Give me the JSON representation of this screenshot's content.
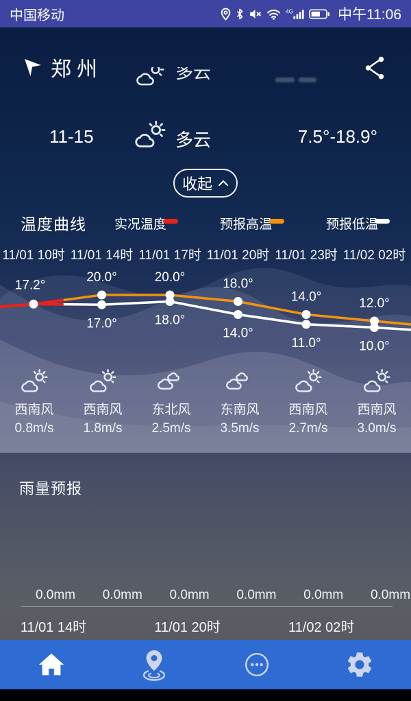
{
  "status_bar": {
    "carrier": "中国移动",
    "time": "中午11:06",
    "icons": [
      "location-icon",
      "bluetooth-icon",
      "mute-icon",
      "wifi-icon",
      "signal-4g-icon",
      "battery-icon"
    ]
  },
  "header": {
    "city": "郑州"
  },
  "peek_row": {
    "condition": "多云",
    "icon": "partly-cloudy"
  },
  "forecast_row": {
    "date": "11-15",
    "icon": "partly-cloudy",
    "condition": "多云",
    "temp_range": "7.5°-18.9°"
  },
  "collapse": {
    "label": "收起"
  },
  "temp_section": {
    "title": "温度曲线",
    "legend": [
      {
        "label": "实况温度",
        "color": "#e8221a"
      },
      {
        "label": "预报高温",
        "color": "#f2930d"
      },
      {
        "label": "预报低温",
        "color": "#ffffff"
      }
    ],
    "times": [
      "11/01 10时",
      "11/01 14时",
      "11/01 17时",
      "11/01 20时",
      "11/01 23时",
      "11/02 02时"
    ],
    "chart_data": {
      "type": "line",
      "x": [
        "11/01 10时",
        "11/01 14时",
        "11/01 17时",
        "11/01 20时",
        "11/01 23时",
        "11/02 02时"
      ],
      "unit": "°",
      "series": [
        {
          "name": "实况温度",
          "color": "#e8221a",
          "points": [
            {
              "x": "11/01 10时",
              "value": 17.2
            }
          ]
        },
        {
          "name": "预报高温",
          "color": "#f2930d",
          "points": [
            {
              "x": "11/01 14时",
              "value": 20.0
            },
            {
              "x": "11/01 17时",
              "value": 20.0
            },
            {
              "x": "11/01 20时",
              "value": 18.0
            },
            {
              "x": "11/01 23时",
              "value": 14.0
            },
            {
              "x": "11/02 02时",
              "value": 12.0
            }
          ]
        },
        {
          "name": "预报低温",
          "color": "#ffffff",
          "points": [
            {
              "x": "11/01 14时",
              "value": 17.0
            },
            {
              "x": "11/01 17时",
              "value": 18.0
            },
            {
              "x": "11/01 20时",
              "value": 14.0
            },
            {
              "x": "11/01 23时",
              "value": 11.0
            },
            {
              "x": "11/02 02时",
              "value": 10.0
            }
          ]
        }
      ]
    }
  },
  "wind": [
    {
      "icon": "partly-cloudy",
      "direction": "西南风",
      "speed": "0.8m/s"
    },
    {
      "icon": "partly-cloudy",
      "direction": "西南风",
      "speed": "1.8m/s"
    },
    {
      "icon": "cloudy",
      "direction": "东北风",
      "speed": "2.5m/s"
    },
    {
      "icon": "cloudy",
      "direction": "东南风",
      "speed": "3.5m/s"
    },
    {
      "icon": "partly-cloudy",
      "direction": "西南风",
      "speed": "2.7m/s"
    },
    {
      "icon": "partly-cloudy",
      "direction": "西南风",
      "speed": "3.0m/s"
    }
  ],
  "rain": {
    "title": "雨量预报",
    "chart_data": {
      "type": "bar",
      "value_labels": [
        "0.0mm",
        "0.0mm",
        "0.0mm",
        "0.0mm",
        "0.0mm",
        "0.0mm"
      ],
      "values": [
        0.0,
        0.0,
        0.0,
        0.0,
        0.0,
        0.0
      ],
      "time_labels": [
        "11/01 14时",
        "11/01 20时",
        "11/02 02时"
      ],
      "unit": "mm"
    }
  },
  "nav": {
    "items": [
      {
        "icon": "home-icon",
        "active": true
      },
      {
        "icon": "location-pin-icon",
        "active": false
      },
      {
        "icon": "more-icon",
        "active": false
      },
      {
        "icon": "settings-icon",
        "active": false
      }
    ]
  }
}
